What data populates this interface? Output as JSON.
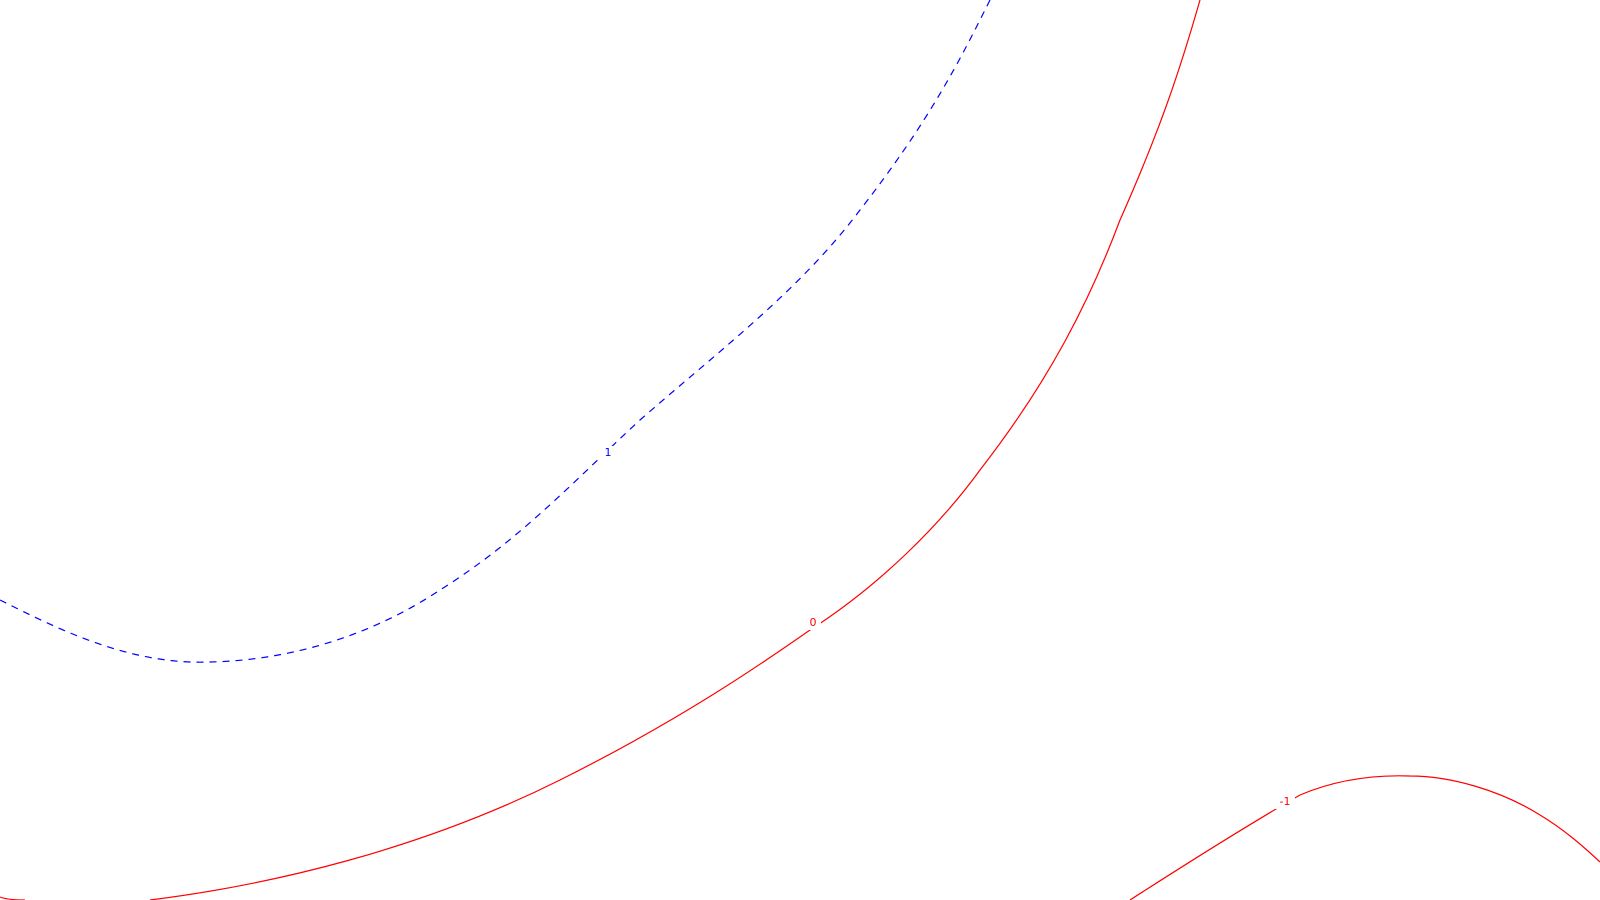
{
  "contours": [
    {
      "id": "contour-1",
      "label": "1",
      "color": "#0000ff",
      "style": "dashed"
    },
    {
      "id": "contour-0",
      "label": "0",
      "color": "#ff0000",
      "style": "solid"
    },
    {
      "id": "contour-neg1",
      "label": "-1",
      "color": "#ff0000",
      "style": "solid"
    }
  ],
  "background": "#ffffff"
}
